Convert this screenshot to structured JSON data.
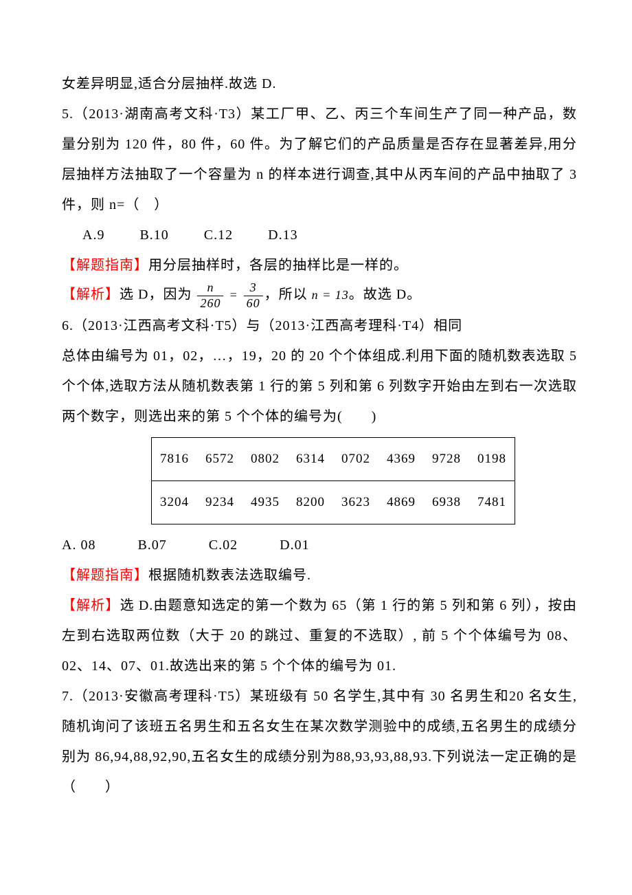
{
  "p1": "女差异明显,适合分层抽样.故选 D.",
  "q5": {
    "stem1": "5.（2013·湖南高考文科·T3）某工厂甲、乙、丙三个车间生产了同一种产品，数量分别为 120 件，80 件，60 件。为了解它们的产品质量是否存在显著差异,用分层抽样方法抽取了一个容量为 n 的样本进行调查,其中从丙车间的产品中抽取了 3 件，则 n=（　）",
    "optA": "A.9",
    "optB": "B.10",
    "optC": "C.12",
    "optD": "D.13",
    "hint_label": "【解题指南】",
    "hint_text": "用分层抽样时，各层的抽样比是一样的。",
    "ans_label": "【解析】",
    "ans_prefix": "选 D，因为",
    "frac1_num": "n",
    "frac1_den": "260",
    "eq": "=",
    "frac2_num": "3",
    "frac2_den": "60",
    "ans_mid": "，所以",
    "ans_formula": "n = 13",
    "ans_suffix": "。故选 D。"
  },
  "q6": {
    "stem1": "6.（2013·江西高考文科·T5）与（2013·江西高考理科·T4）相同",
    "stem2": "总体由编号为 01，02，…，19，20 的 20 个个体组成.利用下面的随机数表选取 5 个个体,选取方法从随机数表第 1 行的第 5 列和第 6 列数字开始由左到右一次选取两个数字，则选出来的第 5 个个体的编号为(　　)",
    "table": {
      "row1": [
        "7816",
        "6572",
        "0802",
        "6314",
        "0702",
        "4369",
        "9728",
        "0198"
      ],
      "row2": [
        "3204",
        "9234",
        "4935",
        "8200",
        "3623",
        "4869",
        "6938",
        "7481"
      ]
    },
    "optA": "A. 08",
    "optB": "B.07",
    "optC": "C.02",
    "optD": "D.01",
    "hint_label": "【解题指南】",
    "hint_text": "根据随机数表法选取编号.",
    "ans_label": "【解析】",
    "ans_text": "选 D.由题意知选定的第一个数为 65（第 1 行的第 5 列和第 6 列），按由左到右选取两位数（大于 20 的跳过、重复的不选取）, 前 5 个个体编号为 08、02、14、07、01.故选出来的第 5 个个体的编号为 01."
  },
  "q7": {
    "stem": "7.（2013·安徽高考理科·T5）某班级有 50 名学生,其中有 30 名男生和20 名女生,随机询问了该班五名男生和五名女生在某次数学测验中的成绩,五名男生的成绩分别为 86,94,88,92,90,五名女生的成绩分别为88,93,93,88,93.下列说法一定正确的是　（　　）"
  }
}
